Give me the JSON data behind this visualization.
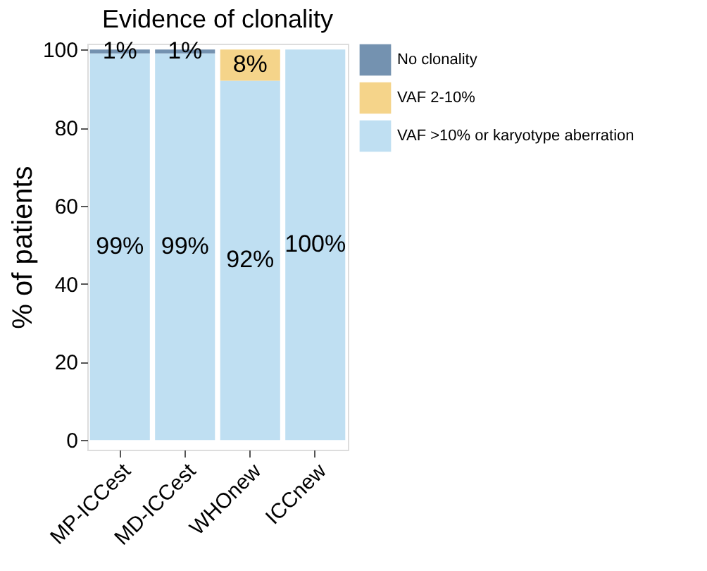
{
  "chart_data": {
    "type": "bar",
    "title": "Evidence of clonality",
    "ylabel": "% of patients",
    "categories": [
      "MP-ICCest",
      "MD-ICCest",
      "WHOnew",
      "ICCnew"
    ],
    "stacked": true,
    "series": [
      {
        "name": "VAF >10% or karyotype aberration",
        "color": "#bfdff2",
        "values": [
          99,
          99,
          92,
          100
        ],
        "value_labels": [
          "99%",
          "99%",
          "92%",
          "100%"
        ]
      },
      {
        "name": "VAF 2-10%",
        "color": "#f5d48a",
        "values": [
          null,
          null,
          8,
          null
        ],
        "value_labels": [
          null,
          null,
          "8%",
          null
        ]
      },
      {
        "name": "No clonality",
        "color": "#7492b0",
        "values": [
          1,
          1,
          null,
          null
        ],
        "value_labels": [
          "1%",
          "1%",
          null,
          null
        ]
      }
    ],
    "ylim": [
      -2.5,
      101.5
    ],
    "yticks": [
      0,
      20,
      40,
      60,
      80,
      100
    ],
    "grid": false,
    "legend": "right"
  }
}
